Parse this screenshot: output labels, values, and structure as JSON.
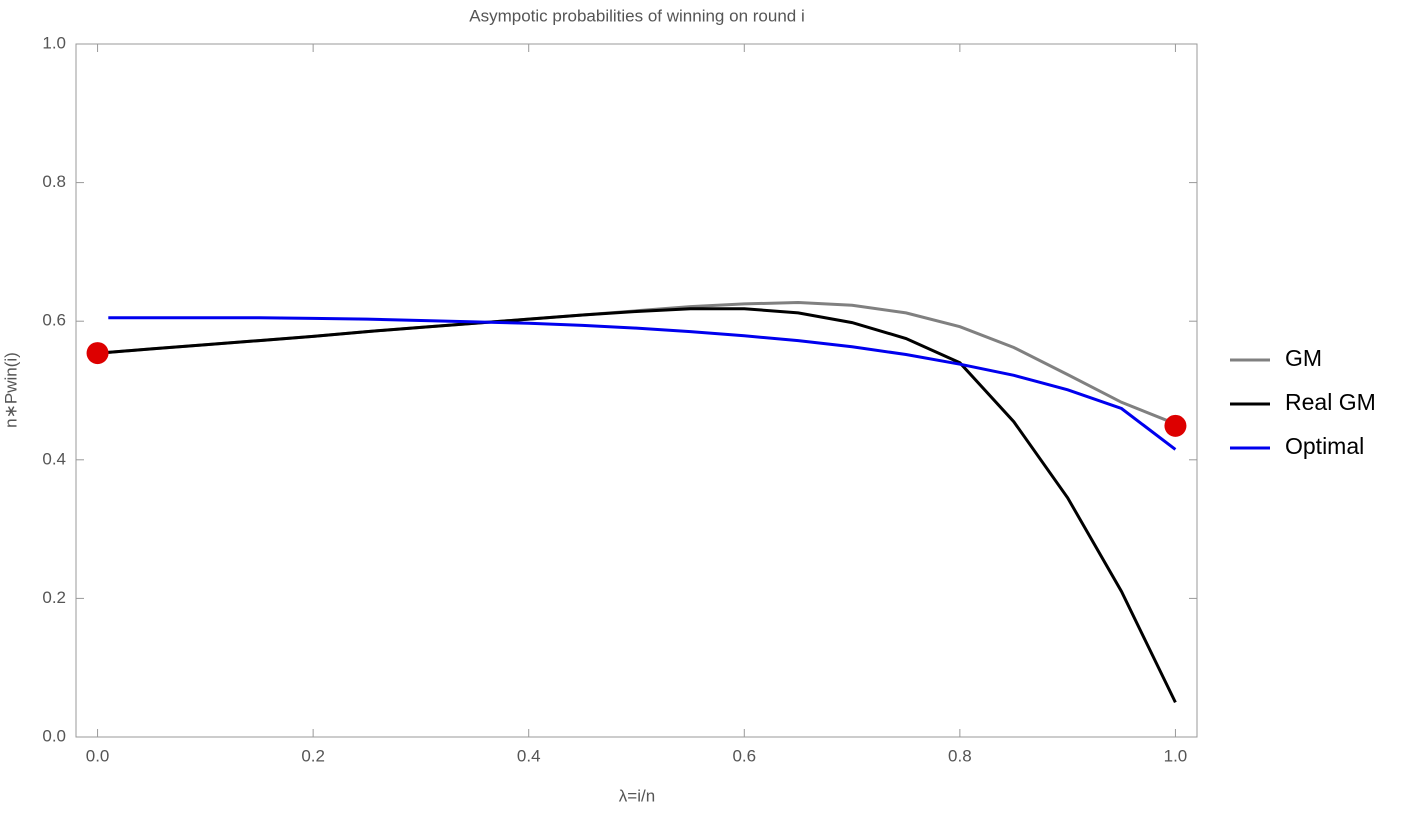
{
  "chart_data": {
    "type": "line",
    "title": "Asympotic probabilities of winning on round i",
    "xlabel": "λ=i/n",
    "ylabel": "n∗Pwin(i)",
    "x": [
      0,
      0.01,
      0.05,
      0.1,
      0.15,
      0.2,
      0.25,
      0.3,
      0.35,
      0.4,
      0.45,
      0.5,
      0.55,
      0.6,
      0.65,
      0.7,
      0.75,
      0.8,
      0.85,
      0.9,
      0.95,
      1.0
    ],
    "series": [
      {
        "name": "GM",
        "color": "#808080",
        "values": [
          0.554,
          0.555,
          0.56,
          0.566,
          0.572,
          0.578,
          0.585,
          0.591,
          0.597,
          0.603,
          0.609,
          0.615,
          0.621,
          0.625,
          0.627,
          0.623,
          0.612,
          0.592,
          0.562,
          0.523,
          0.483,
          0.452
        ]
      },
      {
        "name": "Real GM",
        "color": "#000000",
        "values": [
          0.554,
          0.555,
          0.56,
          0.566,
          0.572,
          0.578,
          0.585,
          0.591,
          0.597,
          0.603,
          0.609,
          0.614,
          0.618,
          0.618,
          0.612,
          0.598,
          0.575,
          0.54,
          0.455,
          0.345,
          0.21,
          0.05
        ]
      },
      {
        "name": "Optimal",
        "color": "#0000ee",
        "values": [
          null,
          0.605,
          0.605,
          0.605,
          0.605,
          0.604,
          0.603,
          0.601,
          0.599,
          0.597,
          0.594,
          0.59,
          0.585,
          0.579,
          0.572,
          0.563,
          0.552,
          0.538,
          0.522,
          0.501,
          0.474,
          0.415
        ]
      }
    ],
    "points": {
      "x": [
        0,
        1.0
      ],
      "values": [
        0.554,
        0.449
      ],
      "color": "#dd0000"
    },
    "xlim": [
      -0.02,
      1.02
    ],
    "ylim": [
      0,
      1.0
    ],
    "xticks": [
      {
        "value": 0,
        "label": "0.0"
      },
      0.2,
      0.4,
      0.6,
      0.8,
      {
        "value": 1.0,
        "label": "1.0"
      }
    ],
    "yticks": [
      {
        "value": 0,
        "label": "0.0"
      },
      0.2,
      0.4,
      0.6,
      0.8,
      {
        "value": 1.0,
        "label": "1.0"
      }
    ],
    "legend": "right"
  }
}
